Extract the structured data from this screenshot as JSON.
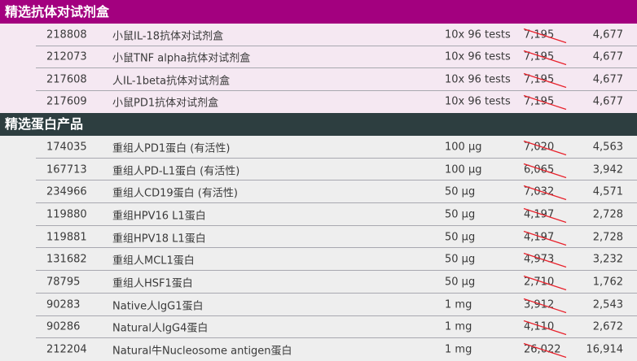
{
  "sections": [
    {
      "title": "精选抗体对试剂盒",
      "header_color": "#a3007f",
      "rows": [
        {
          "code": "218808",
          "name": "小鼠IL-18抗体对试剂盒",
          "qty": "10x 96 tests",
          "old_price": "7,195",
          "price": "4,677"
        },
        {
          "code": "212073",
          "name": "小鼠TNF alpha抗体对试剂盒",
          "qty": "10x 96 tests",
          "old_price": "7,195",
          "price": "4,677"
        },
        {
          "code": "217608",
          "name": "人IL-1beta抗体对试剂盒",
          "qty": "10x 96 tests",
          "old_price": "7,195",
          "price": "4,677"
        },
        {
          "code": "217609",
          "name": "小鼠PD1抗体对试剂盒",
          "qty": "10x 96 tests",
          "old_price": "7,195",
          "price": "4,677"
        }
      ]
    },
    {
      "title": "精选蛋白产品",
      "header_color": "#2d3e40",
      "rows": [
        {
          "code": "174035",
          "name": "重组人PD1蛋白 (有活性)",
          "qty": "100 µg",
          "old_price": "7,020",
          "price": "4,563"
        },
        {
          "code": "167713",
          "name": "重组人PD-L1蛋白 (有活性)",
          "qty": "100 µg",
          "old_price": "6,065",
          "price": "3,942"
        },
        {
          "code": "234966",
          "name": "重组人CD19蛋白 (有活性)",
          "qty": "50 µg",
          "old_price": "7,032",
          "price": "4,571"
        },
        {
          "code": "119880",
          "name": "重组HPV16 L1蛋白",
          "qty": "50 µg",
          "old_price": "4,197",
          "price": "2,728"
        },
        {
          "code": "119881",
          "name": "重组HPV18 L1蛋白",
          "qty": "50 µg",
          "old_price": "4,197",
          "price": "2,728"
        },
        {
          "code": "131682",
          "name": "重组人MCL1蛋白",
          "qty": "50 µg",
          "old_price": "4,973",
          "price": "3,232"
        },
        {
          "code": "78795",
          "name": "重组人HSF1蛋白",
          "qty": "50 µg",
          "old_price": "2,710",
          "price": "1,762"
        },
        {
          "code": "90283",
          "name": "Native人IgG1蛋白",
          "qty": "1 mg",
          "old_price": "3,912",
          "price": "2,543"
        },
        {
          "code": "90286",
          "name": "Natural人IgG4蛋白",
          "qty": "1 mg",
          "old_price": "4,110",
          "price": "2,672"
        },
        {
          "code": "212204",
          "name": "Natural牛Nucleosome antigen蛋白",
          "qty": "1 mg",
          "old_price": "26,022",
          "price": "16,914"
        }
      ]
    }
  ],
  "strike_color": "#e8202a"
}
